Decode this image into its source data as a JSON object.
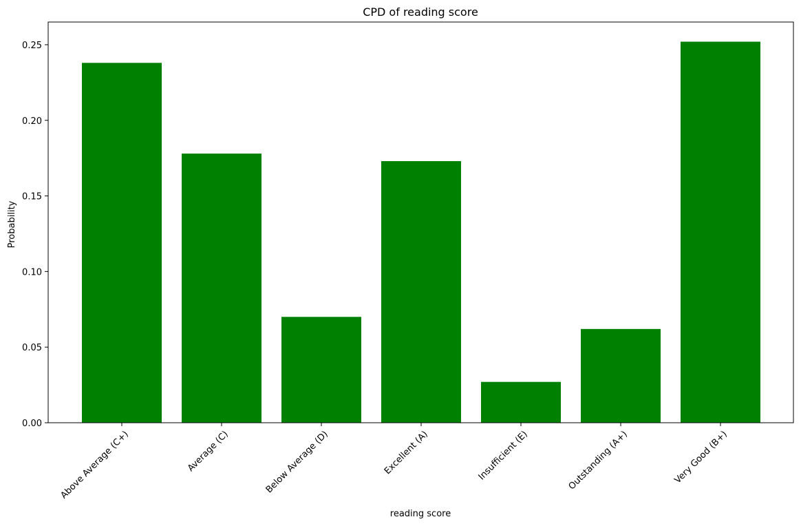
{
  "chart_data": {
    "type": "bar",
    "title": "CPD of reading score",
    "xlabel": "reading score",
    "ylabel": "Probability",
    "categories": [
      "Above Average (C+)",
      "Average (C)",
      "Below Average (D)",
      "Excellent (A)",
      "Insufficient (E)",
      "Outstanding (A+)",
      "Very Good (B+)"
    ],
    "values": [
      0.238,
      0.178,
      0.07,
      0.173,
      0.027,
      0.062,
      0.252
    ],
    "ylim": [
      0,
      0.265
    ],
    "yticks": [
      "0.00",
      "0.05",
      "0.10",
      "0.15",
      "0.20",
      "0.25"
    ],
    "bar_color": "#008000",
    "grid": false
  }
}
